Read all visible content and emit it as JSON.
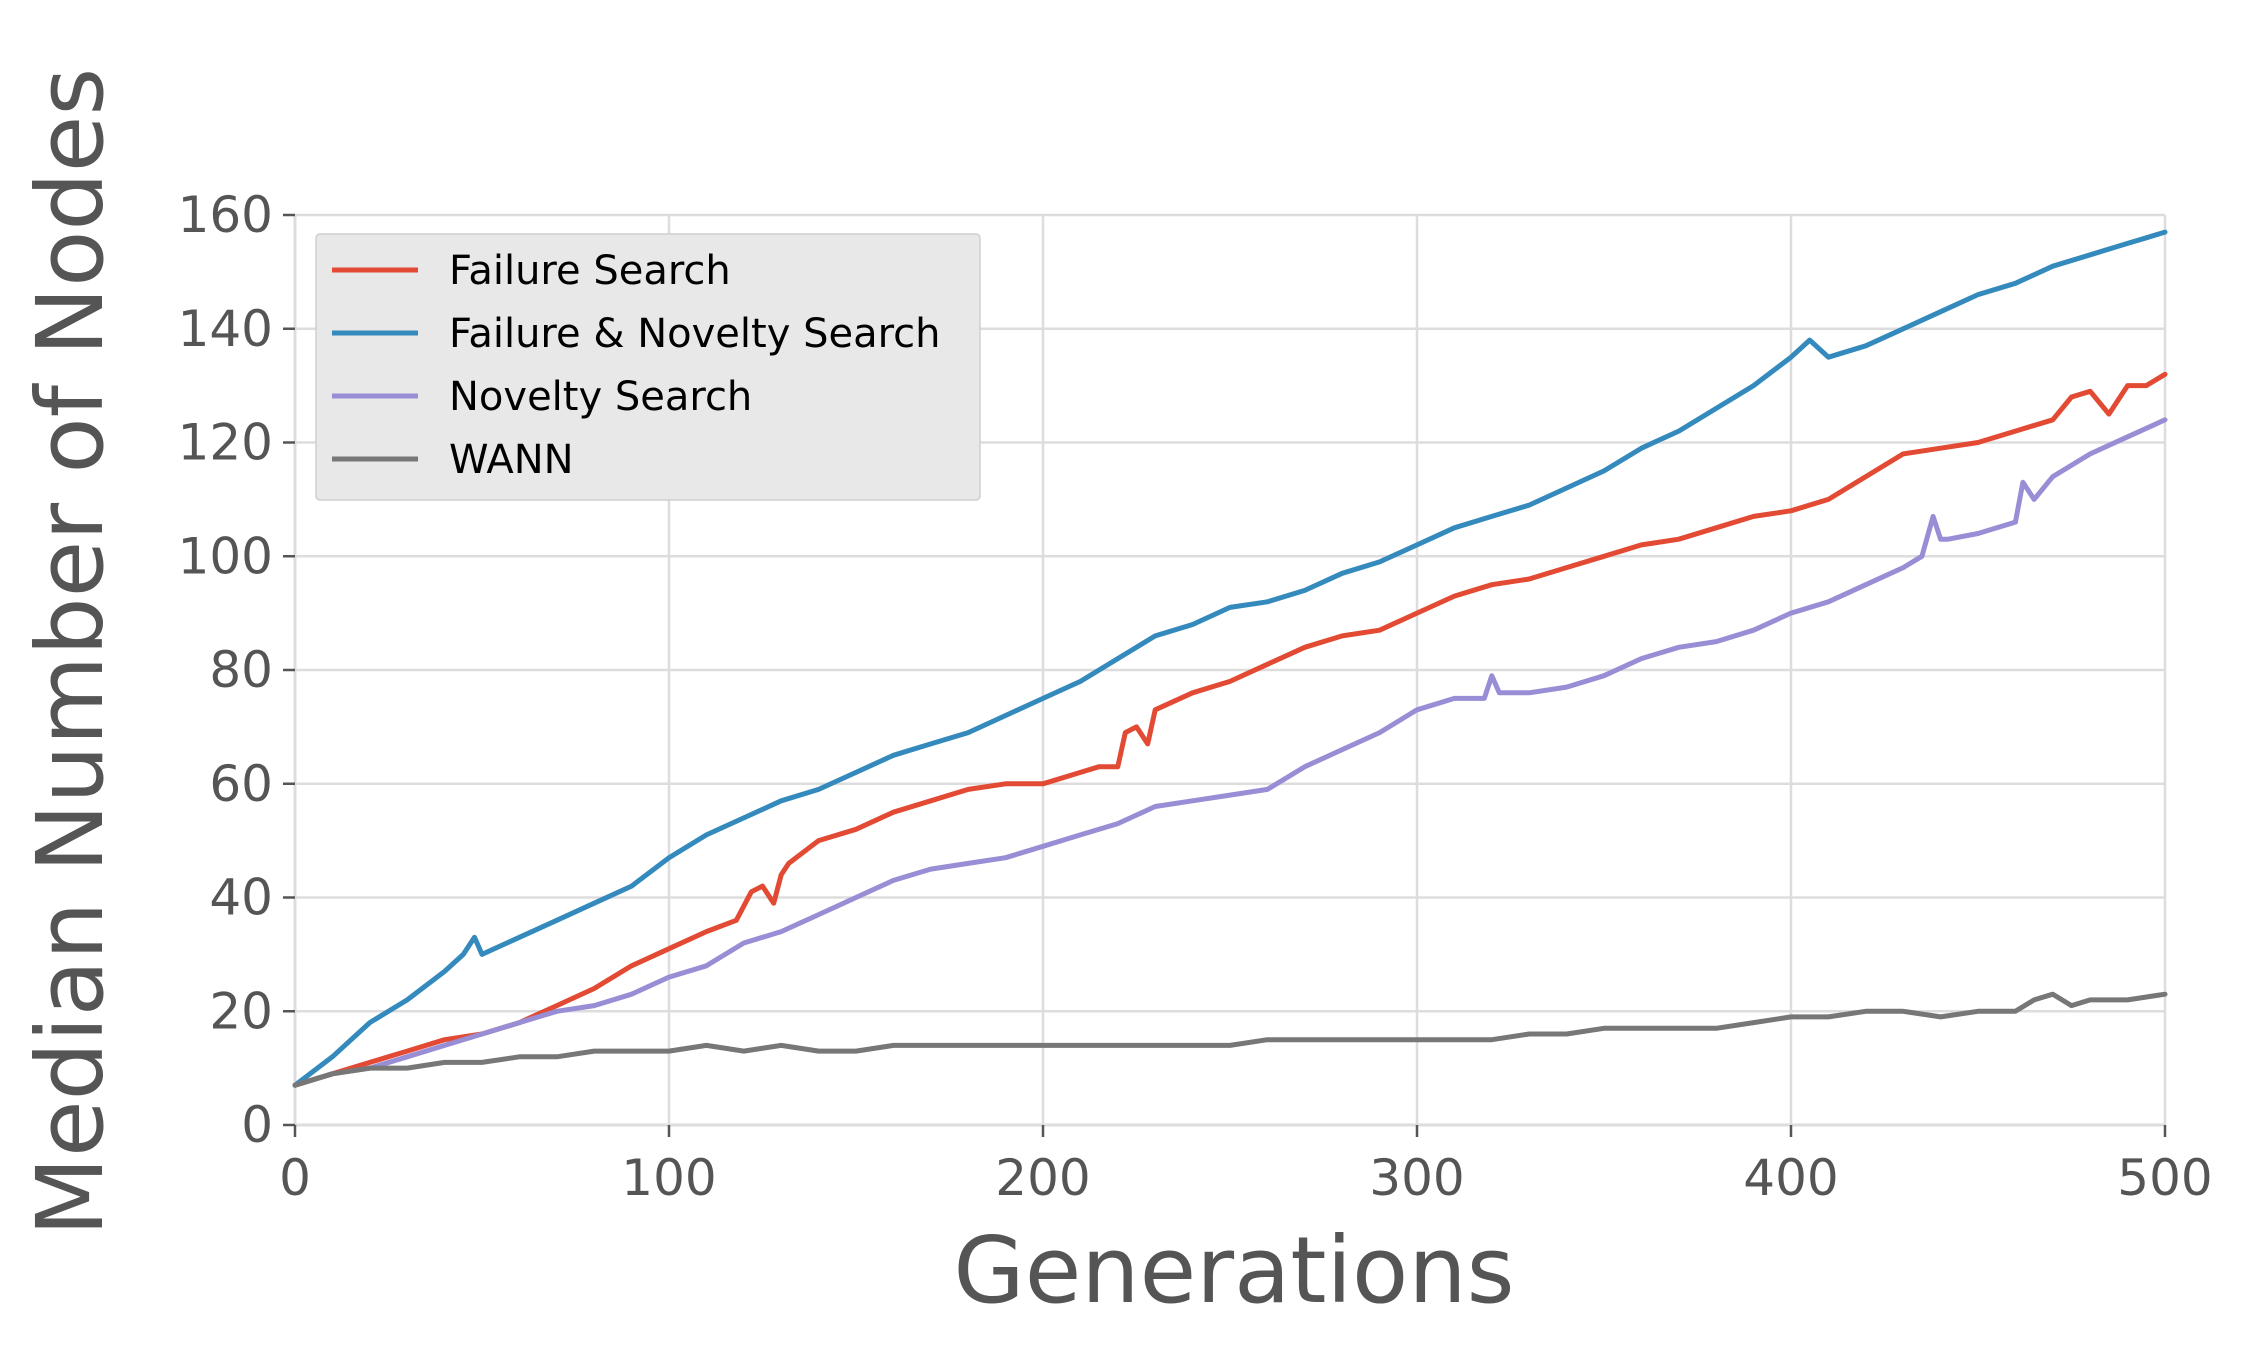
{
  "chart_data": {
    "type": "line",
    "title": "",
    "xlabel": "Generations",
    "ylabel": "Median Number of Nodes",
    "xlim": [
      0,
      500
    ],
    "ylim": [
      0,
      160
    ],
    "xticks": [
      0,
      100,
      200,
      300,
      400,
      500
    ],
    "yticks": [
      0,
      20,
      40,
      60,
      80,
      100,
      120,
      140,
      160
    ],
    "grid": true,
    "legend_position": "top-left",
    "series": [
      {
        "name": "Failure Search",
        "color": "#E24A33",
        "x": [
          0,
          10,
          20,
          30,
          40,
          50,
          60,
          70,
          80,
          90,
          100,
          110,
          118,
          122,
          125,
          128,
          130,
          132,
          138,
          140,
          150,
          160,
          170,
          180,
          190,
          200,
          210,
          215,
          220,
          222,
          225,
          228,
          230,
          240,
          250,
          260,
          270,
          280,
          290,
          300,
          310,
          320,
          330,
          340,
          350,
          360,
          370,
          380,
          390,
          400,
          410,
          420,
          430,
          440,
          450,
          460,
          470,
          475,
          480,
          485,
          490,
          495,
          500
        ],
        "y": [
          7,
          9,
          11,
          13,
          15,
          16,
          18,
          21,
          24,
          28,
          31,
          34,
          36,
          41,
          42,
          39,
          44,
          46,
          49,
          50,
          52,
          55,
          57,
          59,
          60,
          60,
          62,
          63,
          63,
          69,
          70,
          67,
          73,
          76,
          78,
          81,
          84,
          86,
          87,
          90,
          93,
          95,
          96,
          98,
          100,
          102,
          103,
          105,
          107,
          108,
          110,
          114,
          118,
          119,
          120,
          122,
          124,
          128,
          129,
          125,
          130,
          130,
          132
        ]
      },
      {
        "name": "Failure & Novelty Search",
        "color": "#348ABD",
        "x": [
          0,
          10,
          20,
          30,
          40,
          45,
          48,
          50,
          60,
          70,
          80,
          90,
          100,
          110,
          120,
          130,
          140,
          150,
          160,
          170,
          180,
          190,
          200,
          210,
          220,
          230,
          240,
          250,
          260,
          270,
          280,
          290,
          300,
          310,
          320,
          330,
          340,
          350,
          360,
          370,
          380,
          390,
          400,
          405,
          410,
          420,
          430,
          440,
          450,
          460,
          470,
          480,
          490,
          495,
          500
        ],
        "y": [
          7,
          12,
          18,
          22,
          27,
          30,
          33,
          30,
          33,
          36,
          39,
          42,
          47,
          51,
          54,
          57,
          59,
          62,
          65,
          67,
          69,
          72,
          75,
          78,
          82,
          86,
          88,
          91,
          92,
          94,
          97,
          99,
          102,
          105,
          107,
          109,
          112,
          115,
          119,
          122,
          126,
          130,
          135,
          138,
          135,
          137,
          140,
          143,
          146,
          148,
          151,
          153,
          155,
          156,
          157
        ]
      },
      {
        "name": "Novelty Search",
        "color": "#988ED5",
        "x": [
          0,
          10,
          20,
          30,
          40,
          50,
          60,
          70,
          80,
          90,
          100,
          110,
          120,
          130,
          140,
          150,
          160,
          170,
          180,
          190,
          200,
          210,
          220,
          230,
          240,
          250,
          260,
          270,
          280,
          290,
          300,
          310,
          318,
          320,
          322,
          330,
          340,
          350,
          360,
          370,
          380,
          390,
          400,
          410,
          420,
          430,
          435,
          438,
          440,
          442,
          450,
          460,
          462,
          465,
          470,
          480,
          490,
          500
        ],
        "y": [
          7,
          9,
          10,
          12,
          14,
          16,
          18,
          20,
          21,
          23,
          26,
          28,
          32,
          34,
          37,
          40,
          43,
          45,
          46,
          47,
          49,
          51,
          53,
          56,
          57,
          58,
          59,
          63,
          66,
          69,
          73,
          75,
          75,
          79,
          76,
          76,
          77,
          79,
          82,
          84,
          85,
          87,
          90,
          92,
          95,
          98,
          100,
          107,
          103,
          103,
          104,
          106,
          113,
          110,
          114,
          118,
          121,
          124
        ]
      },
      {
        "name": "WANN",
        "color": "#777777",
        "x": [
          0,
          10,
          20,
          30,
          40,
          50,
          60,
          70,
          80,
          90,
          100,
          110,
          120,
          130,
          140,
          150,
          160,
          170,
          180,
          190,
          200,
          210,
          220,
          230,
          240,
          250,
          260,
          270,
          280,
          290,
          300,
          310,
          320,
          330,
          340,
          350,
          360,
          370,
          380,
          390,
          400,
          410,
          420,
          430,
          440,
          450,
          460,
          465,
          470,
          475,
          480,
          490,
          500
        ],
        "y": [
          7,
          9,
          10,
          10,
          11,
          11,
          12,
          12,
          13,
          13,
          13,
          14,
          13,
          14,
          13,
          13,
          14,
          14,
          14,
          14,
          14,
          14,
          14,
          14,
          14,
          14,
          15,
          15,
          15,
          15,
          15,
          15,
          15,
          16,
          16,
          17,
          17,
          17,
          17,
          18,
          19,
          19,
          20,
          20,
          19,
          20,
          20,
          22,
          23,
          21,
          22,
          22,
          23
        ]
      }
    ]
  }
}
